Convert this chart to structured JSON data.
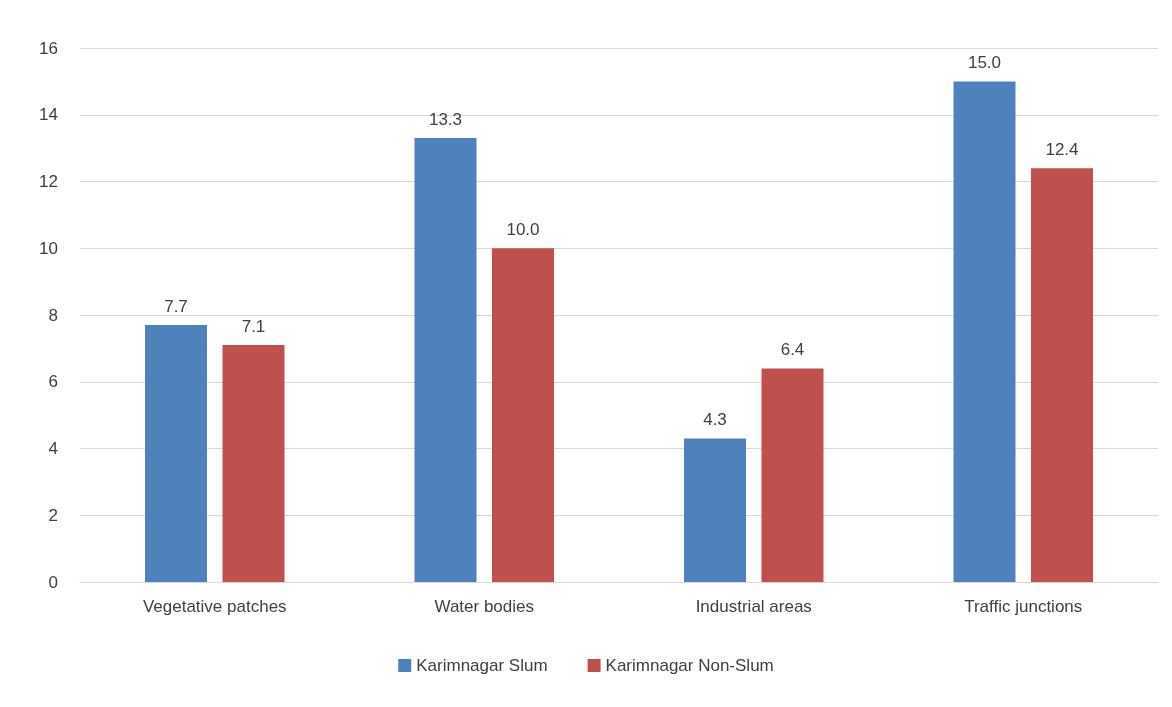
{
  "chart_data": {
    "type": "bar",
    "categories": [
      "Vegetative patches",
      "Water bodies",
      "Industrial areas",
      "Traffic junctions"
    ],
    "series": [
      {
        "name": "Karimnagar Slum",
        "color": "#4f81bd",
        "values": [
          7.7,
          13.3,
          4.3,
          15.0
        ],
        "value_labels": [
          "7.7",
          "13.3",
          "4.3",
          "15.0"
        ]
      },
      {
        "name": "Karimnagar Non-Slum",
        "color": "#c0504d",
        "values": [
          7.1,
          10.0,
          6.4,
          12.4
        ],
        "value_labels": [
          "7.1",
          "10.0",
          "6.4",
          "12.4"
        ]
      }
    ],
    "ylim": [
      0,
      16
    ],
    "yticks": [
      0,
      2,
      4,
      6,
      8,
      10,
      12,
      14,
      16
    ],
    "grid": "y",
    "legend": "bottom"
  }
}
